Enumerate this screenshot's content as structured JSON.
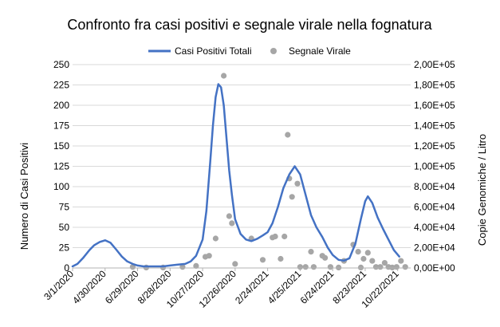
{
  "chart_data": {
    "type": "line",
    "title": "Confronto fra casi positivi e segnale virale nella fognatura",
    "legend": {
      "placement": "top",
      "entries": [
        "Casi Positivi Totali",
        "Segnale Virale"
      ]
    },
    "grid": true,
    "x_axis": {
      "label": "",
      "range": [
        "2020-03-01",
        "2021-11-15"
      ],
      "tick_labels": [
        "3/1/2020",
        "4/30/2020",
        "6/29/2020",
        "8/28/2020",
        "10/27/2020",
        "12/26/2020",
        "2/24/2021",
        "4/25/2021",
        "6/24/2021",
        "8/23/2021",
        "10/22/2021"
      ]
    },
    "y_axis_left": {
      "label": "Numero di Casi Positivi",
      "range": [
        0,
        250
      ],
      "tick_labels": [
        "0",
        "25",
        "50",
        "75",
        "100",
        "125",
        "150",
        "175",
        "200",
        "225",
        "250"
      ]
    },
    "y_axis_right": {
      "label": "Copie Genomiche / Litro",
      "range": [
        0,
        200000
      ],
      "tick_labels": [
        "0,00E+00",
        "2,00E+04",
        "4,00E+04",
        "6,00E+04",
        "8,00E+04",
        "1,00E+05",
        "1,20E+05",
        "1,40E+05",
        "1,60E+05",
        "1,80E+05",
        "2,00E+05"
      ]
    },
    "series": [
      {
        "name": "Casi Positivi Totali",
        "type": "line",
        "axis": "left",
        "color": "#4472c4",
        "points": [
          [
            "2020-03-01",
            2
          ],
          [
            "2020-03-10",
            5
          ],
          [
            "2020-03-20",
            12
          ],
          [
            "2020-04-01",
            22
          ],
          [
            "2020-04-10",
            28
          ],
          [
            "2020-04-20",
            32
          ],
          [
            "2020-04-30",
            34
          ],
          [
            "2020-05-10",
            31
          ],
          [
            "2020-05-20",
            23
          ],
          [
            "2020-05-31",
            14
          ],
          [
            "2020-06-10",
            8
          ],
          [
            "2020-06-20",
            5
          ],
          [
            "2020-06-29",
            3
          ],
          [
            "2020-07-10",
            2
          ],
          [
            "2020-07-20",
            2
          ],
          [
            "2020-08-01",
            2
          ],
          [
            "2020-08-15",
            2
          ],
          [
            "2020-08-28",
            3
          ],
          [
            "2020-09-10",
            4
          ],
          [
            "2020-09-25",
            5
          ],
          [
            "2020-10-05",
            8
          ],
          [
            "2020-10-15",
            15
          ],
          [
            "2020-10-27",
            35
          ],
          [
            "2020-11-03",
            70
          ],
          [
            "2020-11-10",
            130
          ],
          [
            "2020-11-15",
            175
          ],
          [
            "2020-11-20",
            210
          ],
          [
            "2020-11-25",
            226
          ],
          [
            "2020-11-30",
            222
          ],
          [
            "2020-12-05",
            200
          ],
          [
            "2020-12-10",
            160
          ],
          [
            "2020-12-15",
            120
          ],
          [
            "2020-12-20",
            90
          ],
          [
            "2020-12-26",
            60
          ],
          [
            "2021-01-05",
            42
          ],
          [
            "2021-01-15",
            35
          ],
          [
            "2021-01-25",
            33
          ],
          [
            "2021-02-05",
            36
          ],
          [
            "2021-02-15",
            40
          ],
          [
            "2021-02-24",
            44
          ],
          [
            "2021-03-05",
            55
          ],
          [
            "2021-03-15",
            75
          ],
          [
            "2021-03-25",
            98
          ],
          [
            "2021-04-05",
            115
          ],
          [
            "2021-04-15",
            125
          ],
          [
            "2021-04-25",
            115
          ],
          [
            "2021-05-05",
            90
          ],
          [
            "2021-05-15",
            65
          ],
          [
            "2021-05-25",
            50
          ],
          [
            "2021-06-05",
            38
          ],
          [
            "2021-06-15",
            25
          ],
          [
            "2021-06-24",
            16
          ],
          [
            "2021-07-05",
            10
          ],
          [
            "2021-07-15",
            9
          ],
          [
            "2021-07-25",
            12
          ],
          [
            "2021-08-05",
            30
          ],
          [
            "2021-08-15",
            60
          ],
          [
            "2021-08-23",
            82
          ],
          [
            "2021-08-28",
            88
          ],
          [
            "2021-09-05",
            80
          ],
          [
            "2021-09-15",
            62
          ],
          [
            "2021-09-25",
            48
          ],
          [
            "2021-10-05",
            35
          ],
          [
            "2021-10-15",
            22
          ],
          [
            "2021-10-25",
            14
          ]
        ]
      },
      {
        "name": "Segnale Virale",
        "type": "scatter",
        "axis": "right",
        "color": "#a6a6a6",
        "points": [
          [
            "2020-06-20",
            1000
          ],
          [
            "2020-07-15",
            500
          ],
          [
            "2020-08-15",
            500
          ],
          [
            "2020-09-20",
            1000
          ],
          [
            "2020-10-15",
            2000
          ],
          [
            "2020-11-01",
            11000
          ],
          [
            "2020-11-08",
            12000
          ],
          [
            "2020-11-20",
            29000
          ],
          [
            "2020-12-05",
            189000
          ],
          [
            "2020-12-15",
            51000
          ],
          [
            "2020-12-20",
            44000
          ],
          [
            "2020-12-26",
            4000
          ],
          [
            "2021-01-25",
            29000
          ],
          [
            "2021-02-15",
            8000
          ],
          [
            "2021-03-05",
            30000
          ],
          [
            "2021-03-10",
            31000
          ],
          [
            "2021-03-20",
            9000
          ],
          [
            "2021-03-27",
            31000
          ],
          [
            "2021-04-02",
            131000
          ],
          [
            "2021-04-05",
            88000
          ],
          [
            "2021-04-10",
            70000
          ],
          [
            "2021-04-20",
            83000
          ],
          [
            "2021-04-25",
            1000
          ],
          [
            "2021-05-05",
            1000
          ],
          [
            "2021-05-15",
            16000
          ],
          [
            "2021-05-20",
            1000
          ],
          [
            "2021-06-05",
            12000
          ],
          [
            "2021-06-10",
            10000
          ],
          [
            "2021-06-20",
            1000
          ],
          [
            "2021-07-05",
            500
          ],
          [
            "2021-07-15",
            7000
          ],
          [
            "2021-08-01",
            23000
          ],
          [
            "2021-08-10",
            16000
          ],
          [
            "2021-08-15",
            500
          ],
          [
            "2021-08-20",
            9000
          ],
          [
            "2021-08-28",
            15000
          ],
          [
            "2021-09-05",
            7000
          ],
          [
            "2021-09-12",
            1000
          ],
          [
            "2021-09-20",
            1000
          ],
          [
            "2021-09-28",
            5000
          ],
          [
            "2021-10-05",
            1000
          ],
          [
            "2021-10-12",
            500
          ],
          [
            "2021-10-20",
            1000
          ],
          [
            "2021-10-28",
            7000
          ],
          [
            "2021-11-05",
            1000
          ]
        ]
      }
    ]
  }
}
